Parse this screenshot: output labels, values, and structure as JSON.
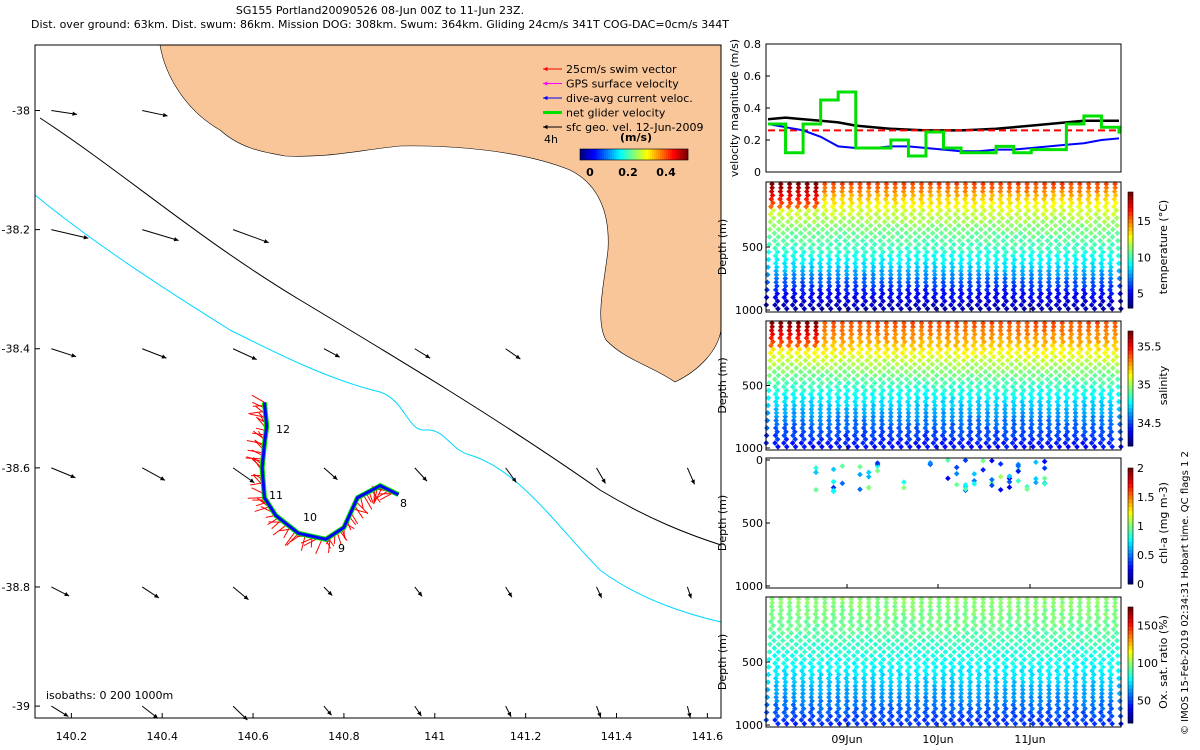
{
  "header": {
    "line1": "SG155 Portland20090526 08-Jun 00Z to 11-Jun 23Z.",
    "line2": "Dist. over ground: 63km. Dist. swum: 86km. Mission DOG: 308km. Swum: 364km. Gliding 24cm/s 341T COG-DAC=0cm/s 344T"
  },
  "credit": "© IMOS 15-Feb-2019 02:34:31 Hobart time. QC flags 1  2",
  "colors": {
    "land": "#F9C69A",
    "swim_vector": "#ff0000",
    "gps_velocity": "#ff00ff",
    "dive_avg_current": "#0000ff",
    "net_glider": "#00e000",
    "sfc_geo": "#000000",
    "isobath_200": "#000000",
    "isobath_1000": "#00d8ff"
  },
  "chart_data": [
    {
      "type": "map",
      "x_ticks": [
        "140.2",
        "140.4",
        "140.6",
        "140.8",
        "141",
        "141.2",
        "141.4",
        "141.6"
      ],
      "y_ticks": [
        "-38",
        "-38.2",
        "-38.4",
        "-38.6",
        "-38.8",
        "-39"
      ],
      "xlim": [
        140.12,
        141.63
      ],
      "ylim": [
        -39.02,
        -37.89
      ],
      "legend": {
        "items": [
          "25cm/s swim vector",
          "GPS surface velocity",
          "dive-avg current veloc.",
          "net glider velocity",
          "sfc geo. vel. 12-Jun-2009"
        ],
        "interval": "4h",
        "colorbar_title": "(m/s)",
        "colorbar_ticks": [
          "0",
          "0.2",
          "0.4"
        ]
      },
      "isobath_label": "isobaths: 0   200  1000m",
      "day_labels": [
        "8",
        "9",
        "10",
        "11",
        "12"
      ],
      "track": [
        [
          140.625,
          -38.49
        ],
        [
          140.63,
          -38.53
        ],
        [
          140.625,
          -38.56
        ],
        [
          140.62,
          -38.6
        ],
        [
          140.625,
          -38.65
        ],
        [
          140.65,
          -38.68
        ],
        [
          140.7,
          -38.71
        ],
        [
          140.76,
          -38.72
        ],
        [
          140.8,
          -38.7
        ],
        [
          140.83,
          -38.65
        ],
        [
          140.88,
          -38.63
        ],
        [
          140.92,
          -38.645
        ]
      ]
    },
    {
      "type": "line",
      "ylabel": "velocity magnitude (m/s)",
      "ylim": [
        0,
        0.8
      ],
      "y_ticks": [
        "0",
        "0.2",
        "0.4",
        "0.6",
        "0.8"
      ],
      "x_ticks": [
        "09Jun",
        "10Jun",
        "11Jun"
      ],
      "series": [
        {
          "key": "sfc",
          "color": "#000000",
          "values": [
            0.33,
            0.34,
            0.33,
            0.32,
            0.31,
            0.29,
            0.28,
            0.27,
            0.265,
            0.26,
            0.26,
            0.26,
            0.265,
            0.27,
            0.28,
            0.29,
            0.3,
            0.31,
            0.32,
            0.32,
            0.32
          ]
        },
        {
          "key": "swim",
          "color": "#ff0000",
          "values": [
            0.26,
            0.26,
            0.26,
            0.26,
            0.26,
            0.26,
            0.26,
            0.26,
            0.26,
            0.26,
            0.26,
            0.26,
            0.26,
            0.26,
            0.26,
            0.26,
            0.26,
            0.26,
            0.26,
            0.26,
            0.26
          ]
        },
        {
          "key": "dac",
          "color": "#0000ff",
          "values": [
            0.3,
            0.28,
            0.26,
            0.22,
            0.16,
            0.15,
            0.15,
            0.16,
            0.16,
            0.15,
            0.14,
            0.13,
            0.13,
            0.14,
            0.14,
            0.15,
            0.16,
            0.17,
            0.18,
            0.2,
            0.21
          ]
        },
        {
          "key": "net",
          "color": "#00e000",
          "values": [
            0.3,
            0.12,
            0.3,
            0.45,
            0.5,
            0.15,
            0.15,
            0.2,
            0.1,
            0.25,
            0.15,
            0.12,
            0.12,
            0.16,
            0.12,
            0.14,
            0.14,
            0.3,
            0.35,
            0.28,
            0.24
          ]
        }
      ]
    },
    {
      "type": "scatter",
      "ylabel": "Depth (m)",
      "y_ticks": [
        "500",
        "1000"
      ],
      "ylim": [
        0,
        1000
      ],
      "colorbar_label": "temperature (°C)",
      "colorbar_ticks": [
        "5",
        "10",
        "15"
      ],
      "range": [
        3,
        19
      ],
      "profile": [
        [
          0,
          16
        ],
        [
          100,
          14
        ],
        [
          200,
          12.5
        ],
        [
          350,
          11
        ],
        [
          500,
          10
        ],
        [
          650,
          8.5
        ],
        [
          800,
          6
        ],
        [
          1000,
          3.5
        ]
      ],
      "warm_surface_dives": 6
    },
    {
      "type": "scatter",
      "ylabel": "Depth (m)",
      "y_ticks": [
        "500",
        "1000"
      ],
      "ylim": [
        0,
        1000
      ],
      "colorbar_label": "salinity",
      "colorbar_ticks": [
        "34.5",
        "35",
        "35.5"
      ],
      "range": [
        34.2,
        35.7
      ],
      "profile": [
        [
          0,
          35.4
        ],
        [
          150,
          35.25
        ],
        [
          300,
          35.05
        ],
        [
          450,
          34.9
        ],
        [
          600,
          34.75
        ],
        [
          800,
          34.55
        ],
        [
          1000,
          34.4
        ]
      ],
      "warm_surface_dives": 6
    },
    {
      "type": "scatter",
      "ylabel": "Depth (m)",
      "y_ticks": [
        "0",
        "500",
        "1000"
      ],
      "ylim": [
        0,
        1000
      ],
      "colorbar_label": "chl-a (mg m-3)",
      "colorbar_ticks": [
        "0",
        "0.5",
        "1",
        "1.5",
        "2"
      ],
      "range": [
        0,
        2
      ]
    },
    {
      "type": "scatter",
      "ylabel": "Depth (m)",
      "y_ticks": [
        "500",
        "1000"
      ],
      "ylim": [
        0,
        1000
      ],
      "colorbar_label": "Ox. sat. ratio (%)",
      "colorbar_ticks": [
        "50",
        "100",
        "150"
      ],
      "range": [
        20,
        175
      ],
      "profile": [
        [
          0,
          100
        ],
        [
          200,
          95
        ],
        [
          400,
          85
        ],
        [
          600,
          75
        ],
        [
          800,
          60
        ],
        [
          1000,
          45
        ]
      ]
    }
  ]
}
